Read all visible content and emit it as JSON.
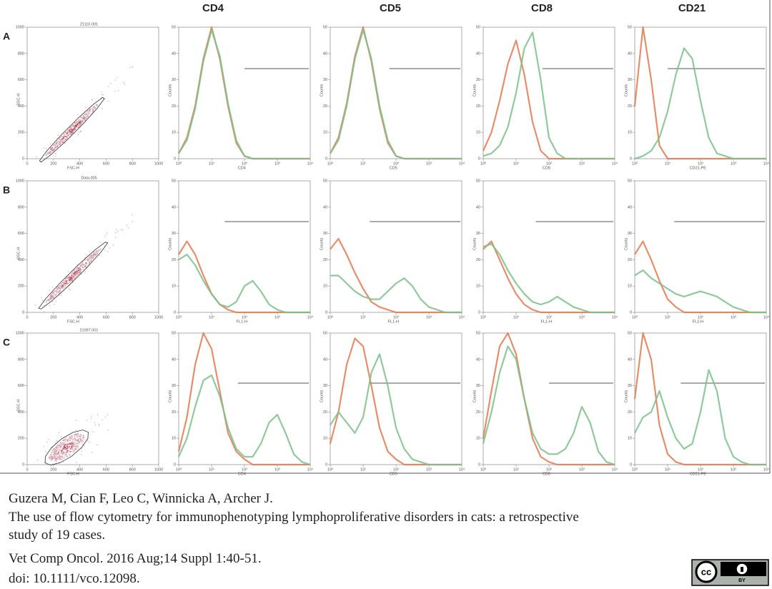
{
  "figure": {
    "column_headers": [
      "CD4",
      "CD5",
      "CD8",
      "CD21"
    ],
    "row_labels": [
      "A",
      "B",
      "C"
    ],
    "scatter_lim": [
      0,
      1000
    ],
    "scatter_ticks": [
      0,
      200,
      400,
      600,
      800,
      1000
    ],
    "hist_x": [
      0,
      0.25,
      0.5,
      0.75,
      1,
      1.25,
      1.5,
      1.75,
      2,
      2.25,
      2.5,
      2.75,
      3,
      3.25,
      3.5,
      3.75,
      4
    ],
    "hist_xlim": [
      0,
      4
    ],
    "hist_xticks": [
      {
        "value": 0,
        "label": "10⁰"
      },
      {
        "value": 1,
        "label": "10¹"
      },
      {
        "value": 2,
        "label": "10²"
      },
      {
        "value": 3,
        "label": "10³"
      },
      {
        "value": 4,
        "label": "10⁴"
      }
    ],
    "hist_ylim": [
      0,
      50
    ],
    "hist_yticks": [
      0,
      10,
      20,
      30,
      40,
      50
    ],
    "rows": [
      {
        "scatter": {
          "title": "21110.001",
          "xlabel": "FSC-H",
          "ylabel": "SSC-H"
        },
        "histograms": [
          {
            "xlabel": "CD4",
            "ylabel": "Counts",
            "series": [
              {
                "color": "#e07a52",
                "values": [
                  2,
                  8,
                  20,
                  38,
                  50,
                  38,
                  20,
                  6,
                  1,
                  0,
                  0,
                  0,
                  0,
                  0,
                  0,
                  0,
                  0
                ]
              },
              {
                "color": "#7cc08a",
                "values": [
                  2,
                  7,
                  19,
                  37,
                  49,
                  39,
                  21,
                  7,
                  1,
                  0,
                  0,
                  0,
                  0,
                  0,
                  0,
                  0,
                  0
                ]
              }
            ]
          },
          {
            "xlabel": "CD5",
            "ylabel": "Counts",
            "series": [
              {
                "color": "#e07a52",
                "values": [
                  2,
                  8,
                  21,
                  39,
                  50,
                  37,
                  19,
                  6,
                  1,
                  0,
                  0,
                  0,
                  0,
                  0,
                  0,
                  0,
                  0
                ]
              },
              {
                "color": "#7cc08a",
                "values": [
                  2,
                  7,
                  20,
                  38,
                  49,
                  38,
                  20,
                  7,
                  1,
                  0,
                  0,
                  0,
                  0,
                  0,
                  0,
                  0,
                  0
                ]
              }
            ]
          },
          {
            "xlabel": "CD8",
            "ylabel": "Counts",
            "series": [
              {
                "color": "#e07a52",
                "values": [
                  3,
                  10,
                  22,
                  36,
                  45,
                  32,
                  14,
                  3,
                  0,
                  0,
                  0,
                  0,
                  0,
                  0,
                  0,
                  0,
                  0
                ]
              },
              {
                "color": "#7cc08a",
                "values": [
                  1,
                  2,
                  5,
                  12,
                  25,
                  42,
                  48,
                  30,
                  8,
                  2,
                  0,
                  0,
                  0,
                  0,
                  0,
                  0,
                  0
                ]
              }
            ]
          },
          {
            "xlabel": "CD21-PE",
            "ylabel": "Counts",
            "series": [
              {
                "color": "#e07a52",
                "values": [
                  20,
                  50,
                  30,
                  5,
                  0,
                  0,
                  0,
                  0,
                  0,
                  0,
                  0,
                  0,
                  0,
                  0,
                  0,
                  0,
                  0
                ]
              },
              {
                "color": "#7cc08a",
                "values": [
                  0,
                  1,
                  3,
                  8,
                  18,
                  32,
                  42,
                  38,
                  22,
                  8,
                  2,
                  1,
                  0,
                  0,
                  0,
                  0,
                  0
                ]
              }
            ]
          }
        ]
      },
      {
        "scatter": {
          "title": "Data.005",
          "xlabel": "FSC-H",
          "ylabel": "SSC-H"
        },
        "histograms": [
          {
            "xlabel": "FL1-H",
            "ylabel": "Counts",
            "series": [
              {
                "color": "#e07a52",
                "values": [
                  22,
                  27,
                  22,
                  14,
                  7,
                  3,
                  1,
                  0,
                  0,
                  0,
                  0,
                  0,
                  0,
                  0,
                  0,
                  0,
                  0
                ]
              },
              {
                "color": "#7cc08a",
                "values": [
                  20,
                  22,
                  18,
                  12,
                  7,
                  3,
                  2,
                  4,
                  10,
                  12,
                  8,
                  3,
                  1,
                  0,
                  0,
                  0,
                  0
                ]
              }
            ]
          },
          {
            "xlabel": "FL1-H",
            "ylabel": "Counts",
            "series": [
              {
                "color": "#e07a52",
                "values": [
                  24,
                  28,
                  22,
                  15,
                  9,
                  4,
                  2,
                  1,
                  0,
                  0,
                  0,
                  0,
                  0,
                  0,
                  0,
                  0,
                  0
                ]
              },
              {
                "color": "#7cc08a",
                "values": [
                  14,
                  14,
                  11,
                  8,
                  6,
                  5,
                  5,
                  8,
                  11,
                  13,
                  10,
                  5,
                  2,
                  1,
                  0,
                  0,
                  0
                ]
              }
            ]
          },
          {
            "xlabel": "FL1-H",
            "ylabel": "Counts",
            "series": [
              {
                "color": "#e07a52",
                "values": [
                  24,
                  27,
                  20,
                  13,
                  7,
                  3,
                  1,
                  0,
                  0,
                  0,
                  0,
                  0,
                  0,
                  0,
                  0,
                  0,
                  0
                ]
              },
              {
                "color": "#7cc08a",
                "values": [
                  25,
                  26,
                  22,
                  16,
                  11,
                  7,
                  4,
                  3,
                  4,
                  6,
                  4,
                  2,
                  1,
                  0,
                  0,
                  0,
                  0
                ]
              }
            ]
          },
          {
            "xlabel": "FL2-H",
            "ylabel": "Counts",
            "series": [
              {
                "color": "#e07a52",
                "values": [
                  22,
                  27,
                  20,
                  12,
                  5,
                  2,
                  0,
                  0,
                  0,
                  0,
                  0,
                  0,
                  0,
                  0,
                  0,
                  0,
                  0
                ]
              },
              {
                "color": "#7cc08a",
                "values": [
                  14,
                  16,
                  13,
                  11,
                  9,
                  7,
                  6,
                  7,
                  8,
                  7,
                  6,
                  4,
                  2,
                  1,
                  0,
                  0,
                  0
                ]
              }
            ]
          }
        ]
      },
      {
        "scatter": {
          "title": "21097.001",
          "xlabel": "FSC-H",
          "ylabel": "SSC-H"
        },
        "histograms": [
          {
            "xlabel": "CD4",
            "ylabel": "Counts",
            "series": [
              {
                "color": "#e07a52",
                "values": [
                  5,
                  18,
                  38,
                  50,
                  44,
                  28,
                  12,
                  5,
                  2,
                  0,
                  0,
                  0,
                  0,
                  0,
                  0,
                  0,
                  0
                ]
              },
              {
                "color": "#7cc08a",
                "values": [
                  3,
                  10,
                  22,
                  32,
                  34,
                  26,
                  14,
                  6,
                  3,
                  3,
                  8,
                  16,
                  19,
                  12,
                  4,
                  1,
                  0
                ]
              }
            ]
          },
          {
            "xlabel": "CD5",
            "ylabel": "Counts",
            "series": [
              {
                "color": "#e07a52",
                "values": [
                  8,
                  20,
                  38,
                  48,
                  45,
                  30,
                  14,
                  5,
                  2,
                  0,
                  0,
                  0,
                  0,
                  0,
                  0,
                  0,
                  0
                ]
              },
              {
                "color": "#7cc08a",
                "values": [
                  15,
                  20,
                  16,
                  12,
                  18,
                  35,
                  42,
                  30,
                  14,
                  6,
                  2,
                  1,
                  0,
                  0,
                  0,
                  0,
                  0
                ]
              }
            ]
          },
          {
            "xlabel": "CD8",
            "ylabel": "Counts",
            "series": [
              {
                "color": "#e07a52",
                "values": [
                  10,
                  28,
                  45,
                  50,
                  42,
                  25,
                  10,
                  3,
                  1,
                  0,
                  0,
                  0,
                  0,
                  0,
                  0,
                  0,
                  0
                ]
              },
              {
                "color": "#7cc08a",
                "values": [
                  8,
                  20,
                  35,
                  45,
                  40,
                  25,
                  12,
                  6,
                  4,
                  4,
                  6,
                  12,
                  22,
                  16,
                  5,
                  1,
                  0
                ]
              }
            ]
          },
          {
            "xlabel": "CD21-PE",
            "ylabel": "Counts",
            "series": [
              {
                "color": "#e07a52",
                "values": [
                  25,
                  50,
                  40,
                  15,
                  4,
                  1,
                  0,
                  0,
                  0,
                  0,
                  0,
                  0,
                  0,
                  0,
                  0,
                  0,
                  0
                ]
              },
              {
                "color": "#7cc08a",
                "values": [
                  12,
                  18,
                  20,
                  28,
                  18,
                  10,
                  6,
                  8,
                  20,
                  36,
                  28,
                  10,
                  3,
                  1,
                  0,
                  0,
                  0
                ]
              }
            ]
          }
        ]
      }
    ]
  },
  "citation": {
    "lines": [
      "Guzera M, Cian F, Leo C, Winnicka A, Archer J.",
      "The use of flow cytometry for immunophenotyping lymphoproliferative disorders in cats: a retrospective",
      "study of 19 cases.",
      "Vet Comp Oncol. 2016 Aug;14 Suppl 1:40-51.",
      "doi: 10.1111/vco.12098."
    ]
  },
  "license": {
    "cc": "cc",
    "by": "BY"
  }
}
